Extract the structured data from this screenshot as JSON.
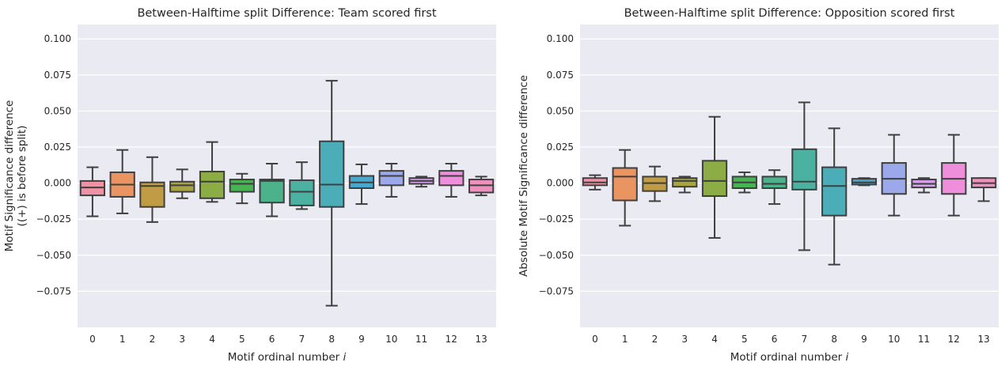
{
  "chart_data": [
    {
      "type": "box",
      "title": "Between-Halftime split Difference: Team scored first",
      "xlabel": "Motif ordinal number ",
      "xlabel_italic": "i",
      "ylabel_lines": [
        "Motif Significance difference",
        "((+) is before split)"
      ],
      "ylim": [
        -0.1,
        0.11
      ],
      "yticks": [
        "0.100",
        "0.075",
        "0.050",
        "0.025",
        "0.000",
        "−0.025",
        "−0.050",
        "−0.075"
      ],
      "ytick_values": [
        0.1,
        0.075,
        0.05,
        0.025,
        0.0,
        -0.025,
        -0.05,
        -0.075
      ],
      "grid": true,
      "categories": [
        "0",
        "1",
        "2",
        "3",
        "4",
        "5",
        "6",
        "7",
        "8",
        "9",
        "10",
        "11",
        "12",
        "13"
      ],
      "boxes": [
        {
          "whislo": -0.023,
          "q1": -0.0085,
          "med": -0.003,
          "q3": 0.0015,
          "whishi": 0.011
        },
        {
          "whislo": -0.021,
          "q1": -0.0095,
          "med": -0.001,
          "q3": 0.0075,
          "whishi": 0.023
        },
        {
          "whislo": -0.027,
          "q1": -0.0165,
          "med": -0.002,
          "q3": 0.0005,
          "whishi": 0.018
        },
        {
          "whislo": -0.0105,
          "q1": -0.006,
          "med": -0.0015,
          "q3": 0.001,
          "whishi": 0.0095
        },
        {
          "whislo": -0.013,
          "q1": -0.0105,
          "med": 0.001,
          "q3": 0.008,
          "whishi": 0.0285
        },
        {
          "whislo": -0.014,
          "q1": -0.006,
          "med": -0.0005,
          "q3": 0.0025,
          "whishi": 0.0065
        },
        {
          "whislo": -0.023,
          "q1": -0.0135,
          "med": 0.0015,
          "q3": 0.0025,
          "whishi": 0.0135
        },
        {
          "whislo": -0.018,
          "q1": -0.0155,
          "med": -0.006,
          "q3": 0.002,
          "whishi": 0.0145
        },
        {
          "whislo": -0.085,
          "q1": -0.0165,
          "med": -0.001,
          "q3": 0.029,
          "whishi": 0.071
        },
        {
          "whislo": -0.0145,
          "q1": -0.0035,
          "med": 0.0005,
          "q3": 0.005,
          "whishi": 0.013
        },
        {
          "whislo": -0.0095,
          "q1": -0.0015,
          "med": 0.005,
          "q3": 0.0085,
          "whishi": 0.0135
        },
        {
          "whislo": -0.0025,
          "q1": -0.0005,
          "med": 0.0015,
          "q3": 0.0035,
          "whishi": 0.0045
        },
        {
          "whislo": -0.0095,
          "q1": -0.0015,
          "med": 0.005,
          "q3": 0.0085,
          "whishi": 0.0135
        },
        {
          "whislo": -0.0085,
          "q1": -0.0065,
          "med": -0.0015,
          "q3": 0.0025,
          "whishi": 0.0045
        }
      ]
    },
    {
      "type": "box",
      "title": "Between-Halftime split Difference: Opposition scored first",
      "xlabel": "Motif ordinal number ",
      "xlabel_italic": "i",
      "ylabel_lines": [
        "Absolute Motif Significance difference"
      ],
      "ylim": [
        -0.1,
        0.11
      ],
      "yticks": [
        "0.100",
        "0.075",
        "0.050",
        "0.025",
        "0.000",
        "−0.025",
        "−0.050",
        "−0.075"
      ],
      "ytick_values": [
        0.1,
        0.075,
        0.05,
        0.025,
        0.0,
        -0.025,
        -0.05,
        -0.075
      ],
      "grid": true,
      "categories": [
        "0",
        "1",
        "2",
        "3",
        "4",
        "5",
        "6",
        "7",
        "8",
        "9",
        "10",
        "11",
        "12",
        "13"
      ],
      "boxes": [
        {
          "whislo": -0.0045,
          "q1": -0.0015,
          "med": 0.0005,
          "q3": 0.0035,
          "whishi": 0.0055
        },
        {
          "whislo": -0.0295,
          "q1": -0.012,
          "med": 0.0045,
          "q3": 0.0105,
          "whishi": 0.023
        },
        {
          "whislo": -0.0125,
          "q1": -0.0055,
          "med": 0.0,
          "q3": 0.0045,
          "whishi": 0.0115
        },
        {
          "whislo": -0.0065,
          "q1": -0.0025,
          "med": 0.0015,
          "q3": 0.0035,
          "whishi": 0.0045
        },
        {
          "whislo": -0.038,
          "q1": -0.009,
          "med": 0.0015,
          "q3": 0.0155,
          "whishi": 0.046
        },
        {
          "whislo": -0.0065,
          "q1": -0.0035,
          "med": 0.0005,
          "q3": 0.0045,
          "whishi": 0.0075
        },
        {
          "whislo": -0.0145,
          "q1": -0.0035,
          "med": -0.0005,
          "q3": 0.0045,
          "whishi": 0.009
        },
        {
          "whislo": -0.0465,
          "q1": -0.0045,
          "med": 0.001,
          "q3": 0.0235,
          "whishi": 0.056
        },
        {
          "whislo": -0.0565,
          "q1": -0.0225,
          "med": -0.002,
          "q3": 0.011,
          "whishi": 0.038
        },
        {
          "whislo": -0.0015,
          "q1": -0.001,
          "med": 0.0005,
          "q3": 0.003,
          "whishi": 0.0035
        },
        {
          "whislo": -0.0225,
          "q1": -0.0075,
          "med": 0.003,
          "q3": 0.014,
          "whishi": 0.0335
        },
        {
          "whislo": -0.0065,
          "q1": -0.003,
          "med": -0.0005,
          "q3": 0.0025,
          "whishi": 0.0035
        },
        {
          "whislo": -0.0225,
          "q1": -0.0075,
          "med": 0.003,
          "q3": 0.014,
          "whishi": 0.0335
        },
        {
          "whislo": -0.0125,
          "q1": -0.003,
          "med": 0.0,
          "q3": 0.0035,
          "whishi": 0.0035
        }
      ]
    }
  ],
  "style": {
    "panel_bg": "#eaeaf2",
    "grid_color": "#ffffff",
    "line_color": "#3f3f3f",
    "palette": [
      "#ef92a3",
      "#ea9462",
      "#c09c45",
      "#a8a344",
      "#8cad45",
      "#47b353",
      "#4bb28c",
      "#4bb2a2",
      "#4badb8",
      "#4aa8cf",
      "#9ba8ea",
      "#d7a0ef",
      "#ef8fdb",
      "#ef91be"
    ]
  }
}
